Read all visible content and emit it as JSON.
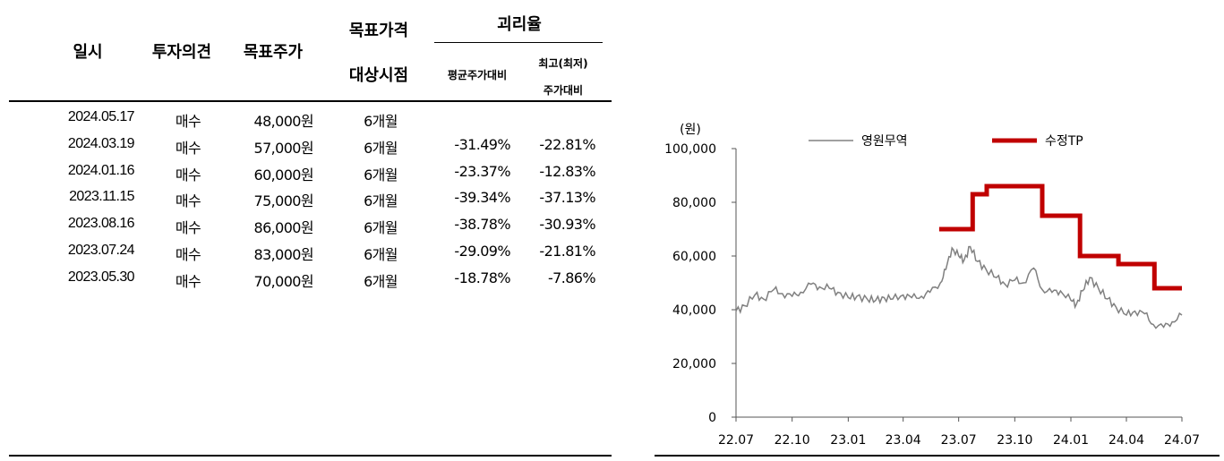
{
  "table": {
    "headers": {
      "date": "일시",
      "opinion": "투자의견",
      "target_price": "목표주가",
      "target_period_line1": "목표가격",
      "target_period_line2": "대상시점",
      "disparity": "괴리율",
      "vs_avg": "평균주가대비",
      "vs_maxmin_line1": "최고(최저)",
      "vs_maxmin_line2": "주가대비"
    },
    "rows": [
      {
        "date": "2024.05.17",
        "opinion": "매수",
        "target_price": "48,000원",
        "period": "6개월",
        "vs_avg": "",
        "vs_maxmin": ""
      },
      {
        "date": "2024.03.19",
        "opinion": "매수",
        "target_price": "57,000원",
        "period": "6개월",
        "vs_avg": "-31.49%",
        "vs_maxmin": "-22.81%"
      },
      {
        "date": "2024.01.16",
        "opinion": "매수",
        "target_price": "60,000원",
        "period": "6개월",
        "vs_avg": "-23.37%",
        "vs_maxmin": "-12.83%"
      },
      {
        "date": "2023.11.15",
        "opinion": "매수",
        "target_price": "75,000원",
        "period": "6개월",
        "vs_avg": "-39.34%",
        "vs_maxmin": "-37.13%"
      },
      {
        "date": "2023.08.16",
        "opinion": "매수",
        "target_price": "86,000원",
        "period": "6개월",
        "vs_avg": "-38.78%",
        "vs_maxmin": "-30.93%"
      },
      {
        "date": "2023.07.24",
        "opinion": "매수",
        "target_price": "83,000원",
        "period": "6개월",
        "vs_avg": "-29.09%",
        "vs_maxmin": "-21.81%"
      },
      {
        "date": "2023.05.30",
        "opinion": "매수",
        "target_price": "70,000원",
        "period": "6개월",
        "vs_avg": "-18.78%",
        "vs_maxmin": "-7.86%"
      }
    ]
  },
  "chart_data": {
    "type": "line",
    "unit_label": "(원)",
    "ylim": [
      0,
      100000
    ],
    "yticks": [
      0,
      20000,
      40000,
      60000,
      80000,
      100000
    ],
    "ytick_labels": [
      "0",
      "20,000",
      "40,000",
      "60,000",
      "80,000",
      "100,000"
    ],
    "xlim": [
      "2022-07",
      "2024-07"
    ],
    "xticks": [
      "2022-07",
      "2022-10",
      "2023-01",
      "2023-04",
      "2023-07",
      "2023-10",
      "2024-01",
      "2024-04",
      "2024-07"
    ],
    "xtick_labels": [
      "22.07",
      "22.10",
      "23.01",
      "23.04",
      "23.07",
      "23.10",
      "24.01",
      "24.04",
      "24.07"
    ],
    "legend_position": "top",
    "grid": false,
    "series": [
      {
        "name": "영원무역",
        "color": "#808080",
        "style": "thin",
        "points": [
          [
            "2022-07-01",
            39500
          ],
          [
            "2022-07-15",
            41500
          ],
          [
            "2022-08-01",
            45500
          ],
          [
            "2022-08-15",
            44000
          ],
          [
            "2022-09-01",
            47500
          ],
          [
            "2022-09-15",
            46000
          ],
          [
            "2022-10-01",
            45000
          ],
          [
            "2022-10-15",
            46500
          ],
          [
            "2022-11-01",
            49500
          ],
          [
            "2022-11-15",
            48500
          ],
          [
            "2022-12-01",
            48000
          ],
          [
            "2022-12-15",
            46500
          ],
          [
            "2023-01-01",
            44500
          ],
          [
            "2023-01-15",
            45000
          ],
          [
            "2023-02-01",
            44000
          ],
          [
            "2023-02-15",
            43500
          ],
          [
            "2023-03-01",
            44500
          ],
          [
            "2023-03-15",
            44000
          ],
          [
            "2023-04-01",
            45500
          ],
          [
            "2023-04-15",
            44500
          ],
          [
            "2023-05-01",
            45000
          ],
          [
            "2023-05-15",
            46500
          ],
          [
            "2023-06-01",
            50000
          ],
          [
            "2023-06-10",
            55000
          ],
          [
            "2023-06-20",
            63000
          ],
          [
            "2023-07-01",
            60000
          ],
          [
            "2023-07-10",
            58500
          ],
          [
            "2023-07-20",
            63500
          ],
          [
            "2023-08-01",
            58000
          ],
          [
            "2023-08-15",
            55000
          ],
          [
            "2023-09-01",
            52000
          ],
          [
            "2023-09-15",
            49500
          ],
          [
            "2023-10-01",
            51000
          ],
          [
            "2023-10-15",
            50000
          ],
          [
            "2023-11-01",
            55500
          ],
          [
            "2023-11-15",
            47500
          ],
          [
            "2023-12-01",
            46500
          ],
          [
            "2023-12-15",
            47000
          ],
          [
            "2024-01-01",
            43500
          ],
          [
            "2024-01-10",
            42000
          ],
          [
            "2024-01-20",
            47000
          ],
          [
            "2024-02-01",
            52000
          ],
          [
            "2024-02-15",
            48000
          ],
          [
            "2024-03-01",
            44000
          ],
          [
            "2024-03-15",
            41000
          ],
          [
            "2024-04-01",
            38000
          ],
          [
            "2024-04-15",
            39500
          ],
          [
            "2024-05-01",
            38500
          ],
          [
            "2024-05-15",
            34500
          ],
          [
            "2024-06-01",
            33500
          ],
          [
            "2024-06-15",
            35500
          ],
          [
            "2024-07-01",
            38000
          ]
        ]
      },
      {
        "name": "수정TP",
        "color": "#c00000",
        "style": "thick-step",
        "points": [
          [
            "2023-05-30",
            70000
          ],
          [
            "2023-07-24",
            83000
          ],
          [
            "2023-08-16",
            86000
          ],
          [
            "2023-11-15",
            75000
          ],
          [
            "2024-01-16",
            60000
          ],
          [
            "2024-03-19",
            57000
          ],
          [
            "2024-05-17",
            48000
          ],
          [
            "2024-07-01",
            48000
          ]
        ]
      }
    ]
  }
}
